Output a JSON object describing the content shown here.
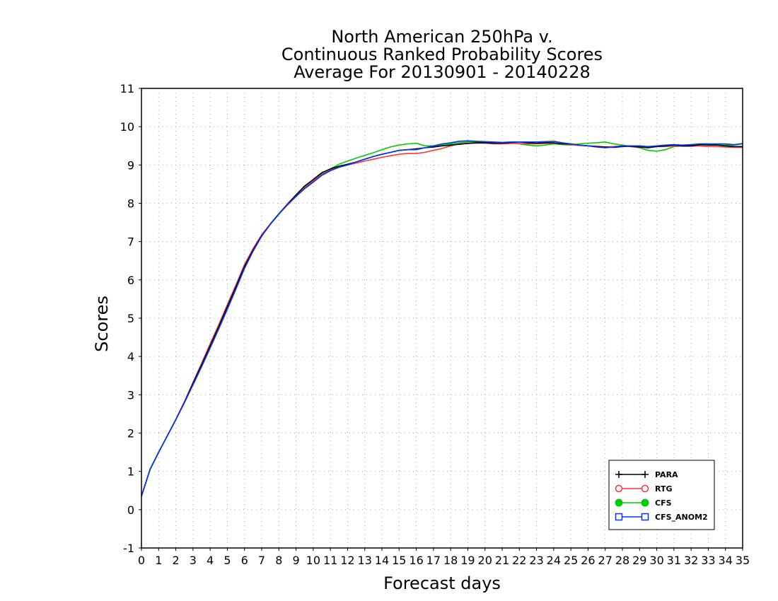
{
  "chart_data": {
    "type": "line",
    "title_lines": [
      "North American 250hPa v.",
      "Continuous Ranked Probability Scores",
      "Average For 20130901 - 20140228"
    ],
    "xlabel": "Forecast days",
    "ylabel": "Scores",
    "xlim": [
      0,
      35
    ],
    "ylim": [
      -1,
      11
    ],
    "x_ticks": [
      0,
      1,
      2,
      3,
      4,
      5,
      6,
      7,
      8,
      9,
      10,
      11,
      12,
      13,
      14,
      15,
      16,
      17,
      18,
      19,
      20,
      21,
      22,
      23,
      24,
      25,
      26,
      27,
      28,
      29,
      30,
      31,
      32,
      33,
      34,
      35
    ],
    "y_ticks": [
      -1,
      0,
      1,
      2,
      3,
      4,
      5,
      6,
      7,
      8,
      9,
      10,
      11
    ],
    "grid": true,
    "legend_position": "bottom-right",
    "x": [
      0,
      0.5,
      1,
      1.5,
      2,
      2.5,
      3,
      3.5,
      4,
      4.5,
      5,
      5.5,
      6,
      6.5,
      7,
      7.5,
      8,
      8.5,
      9,
      9.5,
      10,
      10.5,
      11,
      11.5,
      12,
      12.5,
      13,
      13.5,
      14,
      14.5,
      15,
      15.5,
      16,
      16.5,
      17,
      17.5,
      18,
      18.5,
      19,
      19.5,
      20,
      20.5,
      21,
      21.5,
      22,
      22.5,
      23,
      23.5,
      24,
      24.5,
      25,
      25.5,
      26,
      26.5,
      27,
      27.5,
      28,
      28.5,
      29,
      29.5,
      30,
      30.5,
      31,
      31.5,
      32,
      32.5,
      33,
      33.5,
      34,
      34.5,
      35
    ],
    "series": [
      {
        "name": "PARA",
        "color": "#000000",
        "marker": "plus",
        "values": [
          0.35,
          1.05,
          1.5,
          1.92,
          2.35,
          2.8,
          3.3,
          3.78,
          4.28,
          4.78,
          5.3,
          5.82,
          6.35,
          6.78,
          7.15,
          7.45,
          7.72,
          7.98,
          8.22,
          8.45,
          8.62,
          8.8,
          8.9,
          8.97,
          9.02,
          9.08,
          9.15,
          9.22,
          9.28,
          9.33,
          9.38,
          9.4,
          9.42,
          9.45,
          9.47,
          9.5,
          9.52,
          9.54,
          9.56,
          9.58,
          9.58,
          9.57,
          9.57,
          9.59,
          9.6,
          9.58,
          9.57,
          9.58,
          9.58,
          9.55,
          9.55,
          9.52,
          9.5,
          9.48,
          9.47,
          9.46,
          9.48,
          9.49,
          9.47,
          9.45,
          9.48,
          9.5,
          9.52,
          9.5,
          9.5,
          9.53,
          9.52,
          9.52,
          9.5,
          9.48,
          9.48
        ]
      },
      {
        "name": "RTG",
        "color": "#ff3333",
        "marker": "circle-open",
        "values": [
          0.35,
          1.05,
          1.5,
          1.92,
          2.36,
          2.82,
          3.32,
          3.82,
          4.33,
          4.83,
          5.35,
          5.87,
          6.4,
          6.82,
          7.18,
          7.46,
          7.72,
          7.95,
          8.18,
          8.4,
          8.58,
          8.75,
          8.87,
          8.95,
          9.0,
          9.05,
          9.1,
          9.15,
          9.2,
          9.24,
          9.28,
          9.3,
          9.3,
          9.33,
          9.38,
          9.43,
          9.5,
          9.55,
          9.57,
          9.57,
          9.57,
          9.55,
          9.55,
          9.56,
          9.56,
          9.55,
          9.55,
          9.56,
          9.57,
          9.55,
          9.53,
          9.51,
          9.5,
          9.49,
          9.47,
          9.48,
          9.5,
          9.48,
          9.46,
          9.47,
          9.48,
          9.48,
          9.5,
          9.49,
          9.49,
          9.5,
          9.48,
          9.48,
          9.47,
          9.46,
          9.46
        ]
      },
      {
        "name": "CFS",
        "color": "#00cc00",
        "marker": "circle-filled",
        "values": [
          0.35,
          1.05,
          1.5,
          1.92,
          2.35,
          2.8,
          3.28,
          3.76,
          4.26,
          4.76,
          5.28,
          5.8,
          6.33,
          6.78,
          7.16,
          7.46,
          7.73,
          7.98,
          8.2,
          8.42,
          8.6,
          8.78,
          8.9,
          9.02,
          9.1,
          9.18,
          9.25,
          9.32,
          9.4,
          9.47,
          9.52,
          9.55,
          9.57,
          9.5,
          9.5,
          9.52,
          9.55,
          9.58,
          9.6,
          9.6,
          9.6,
          9.58,
          9.57,
          9.58,
          9.55,
          9.52,
          9.5,
          9.52,
          9.55,
          9.53,
          9.52,
          9.55,
          9.57,
          9.58,
          9.6,
          9.55,
          9.52,
          9.48,
          9.45,
          9.38,
          9.36,
          9.4,
          9.48,
          9.5,
          9.52,
          9.55,
          9.55,
          9.53,
          9.52,
          9.52,
          9.55
        ]
      },
      {
        "name": "CFS_ANOM2",
        "color": "#0033ff",
        "marker": "square-open",
        "values": [
          0.35,
          1.05,
          1.5,
          1.92,
          2.35,
          2.79,
          3.26,
          3.73,
          4.22,
          4.72,
          5.23,
          5.76,
          6.3,
          6.75,
          7.14,
          7.45,
          7.72,
          7.97,
          8.18,
          8.38,
          8.55,
          8.73,
          8.85,
          8.94,
          9.0,
          9.08,
          9.15,
          9.22,
          9.28,
          9.33,
          9.38,
          9.4,
          9.4,
          9.45,
          9.5,
          9.55,
          9.58,
          9.62,
          9.63,
          9.62,
          9.61,
          9.6,
          9.59,
          9.6,
          9.6,
          9.6,
          9.6,
          9.61,
          9.62,
          9.58,
          9.55,
          9.52,
          9.5,
          9.47,
          9.45,
          9.47,
          9.5,
          9.5,
          9.5,
          9.48,
          9.5,
          9.52,
          9.53,
          9.52,
          9.53,
          9.55,
          9.55,
          9.55,
          9.55,
          9.53,
          9.56
        ]
      }
    ]
  }
}
